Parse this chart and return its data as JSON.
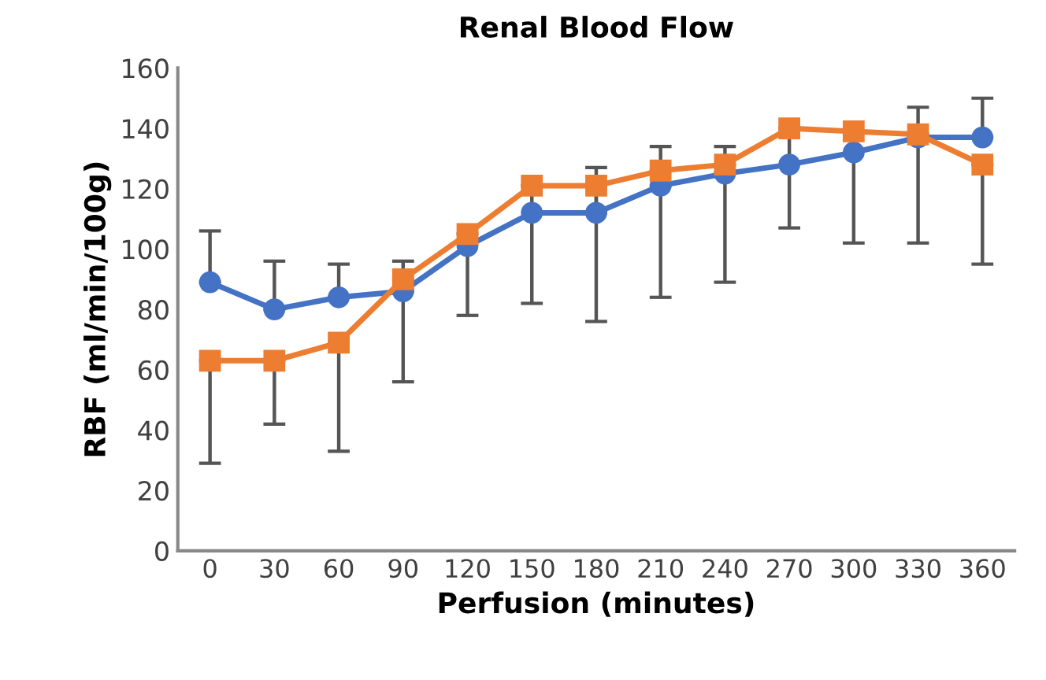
{
  "chart_data": {
    "type": "line",
    "title": "Renal Blood Flow",
    "xlabel": "Perfusion (minutes)",
    "ylabel": "RBF (ml/min/100g)",
    "categories": [
      "0",
      "30",
      "60",
      "90",
      "120",
      "150",
      "180",
      "210",
      "240",
      "270",
      "300",
      "330",
      "360"
    ],
    "series": [
      {
        "color": "#4472c4",
        "marker": "circle",
        "values": [
          89,
          80,
          84,
          86,
          101,
          112,
          112,
          121,
          125,
          128,
          132,
          137,
          137
        ],
        "errors": [
          [
            89,
            106
          ],
          [
            80,
            96
          ],
          [
            84,
            95
          ],
          [
            86,
            96
          ],
          null,
          null,
          [
            112,
            127
          ],
          [
            121,
            134
          ],
          [
            125,
            134
          ],
          null,
          null,
          [
            137,
            147
          ],
          [
            137,
            150
          ]
        ]
      },
      {
        "color": "#ed7d31",
        "marker": "square",
        "values": [
          63,
          63,
          69,
          90,
          105,
          121,
          121,
          126,
          128,
          140,
          139,
          138,
          128
        ],
        "errors": [
          [
            29,
            63
          ],
          [
            42,
            63
          ],
          [
            33,
            69
          ],
          [
            56,
            90
          ],
          [
            78,
            105
          ],
          [
            82,
            121
          ],
          [
            76,
            121
          ],
          [
            84,
            126
          ],
          [
            89,
            128
          ],
          [
            107,
            140
          ],
          [
            102,
            139
          ],
          [
            102,
            138
          ],
          [
            95,
            128
          ]
        ]
      }
    ],
    "ylim": [
      0,
      160
    ],
    "yticks": [
      0,
      20,
      40,
      60,
      80,
      100,
      120,
      140,
      160
    ],
    "grid": false,
    "line_style": "solid"
  }
}
